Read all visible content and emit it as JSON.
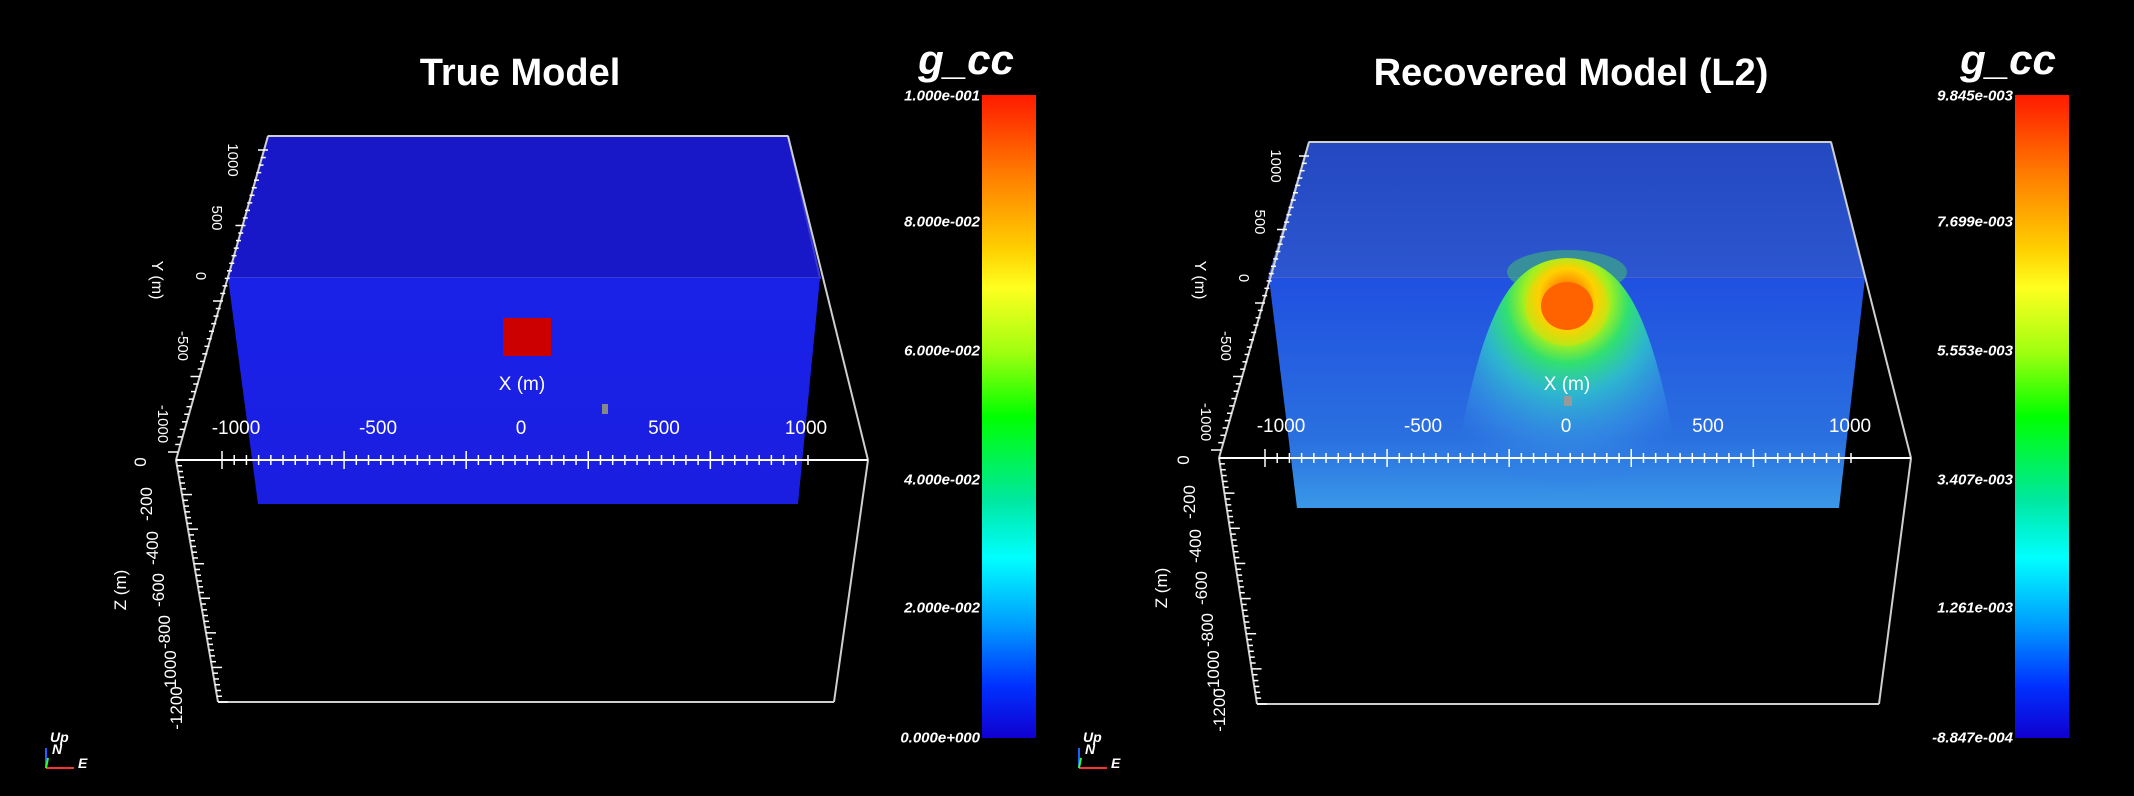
{
  "panels": [
    {
      "title": "True Model",
      "colorbar": {
        "title": "g_cc",
        "labels": [
          "1.000e-001",
          "8.000e-002",
          "6.000e-002",
          "4.000e-002",
          "2.000e-002",
          "0.000e+000"
        ]
      },
      "x_axis": {
        "label": "X (m)",
        "ticks": [
          "-1000",
          "-500",
          "0",
          "500",
          "1000"
        ]
      },
      "y_axis": {
        "label": "Y (m)",
        "ticks": [
          "1000",
          "500",
          "0",
          "-500",
          "-1000"
        ]
      },
      "z_axis": {
        "label": "Z (m)",
        "ticks": [
          "0",
          "-200",
          "-400",
          "-600",
          "-800",
          "-1000",
          "-1200"
        ]
      },
      "orientation": {
        "up": "Up",
        "north": "N",
        "east": "E"
      },
      "colors": {
        "block": "#1a1ee6",
        "block_top": "#1616c8",
        "anomaly": "#cc0000"
      }
    },
    {
      "title": "Recovered Model (L2)",
      "colorbar": {
        "title": "g_cc",
        "labels": [
          "9.845e-003",
          "7.699e-003",
          "5.553e-003",
          "3.407e-003",
          "1.261e-003",
          "-8.847e-004"
        ]
      },
      "x_axis": {
        "label": "X (m)",
        "ticks": [
          "-1000",
          "-500",
          "0",
          "500",
          "1000"
        ]
      },
      "y_axis": {
        "label": "Y (m)",
        "ticks": [
          "1000",
          "500",
          "0",
          "-500",
          "-1000"
        ]
      },
      "z_axis": {
        "label": "Z (m)",
        "ticks": [
          "0",
          "-200",
          "-400",
          "-600",
          "-800",
          "-1000",
          "-1200"
        ]
      },
      "orientation": {
        "up": "Up",
        "north": "N",
        "east": "E"
      },
      "colors": {
        "block": "#2050e0",
        "block_top": "#2a46c8",
        "anomaly": "#e02010"
      }
    }
  ]
}
